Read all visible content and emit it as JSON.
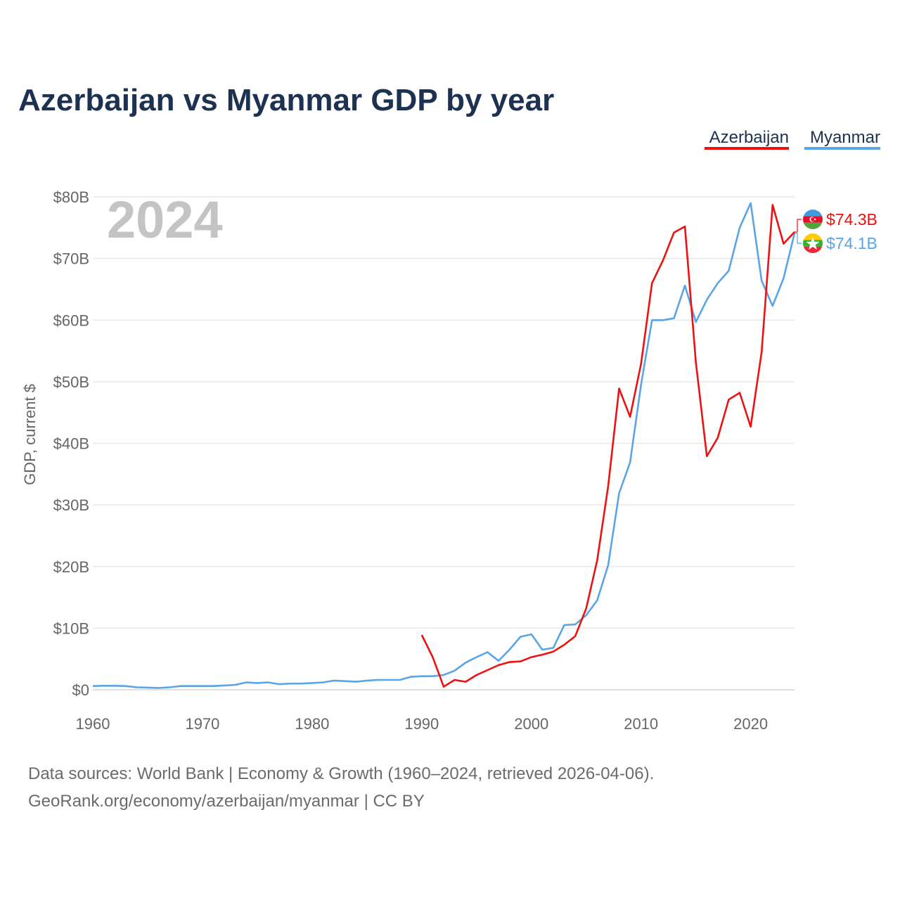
{
  "chart_data": {
    "type": "line",
    "title": "Azerbaijan vs Myanmar GDP by year",
    "ylabel": "GDP, current $",
    "xlabel": "",
    "year_watermark": "2024",
    "xlim": [
      1960,
      2024
    ],
    "ylim": [
      0,
      80
    ],
    "x_ticks": [
      {
        "value": 1960,
        "label": "1960"
      },
      {
        "value": 1970,
        "label": "1970"
      },
      {
        "value": 1980,
        "label": "1980"
      },
      {
        "value": 1990,
        "label": "1990"
      },
      {
        "value": 2000,
        "label": "2000"
      },
      {
        "value": 2010,
        "label": "2010"
      },
      {
        "value": 2020,
        "label": "2020"
      }
    ],
    "y_ticks": [
      {
        "value": 0,
        "label": "$0"
      },
      {
        "value": 10,
        "label": "$10B"
      },
      {
        "value": 20,
        "label": "$20B"
      },
      {
        "value": 30,
        "label": "$30B"
      },
      {
        "value": 40,
        "label": "$40B"
      },
      {
        "value": 50,
        "label": "$50B"
      },
      {
        "value": 60,
        "label": "$60B"
      },
      {
        "value": 70,
        "label": "$70B"
      },
      {
        "value": 80,
        "label": "$80B"
      }
    ],
    "units": "billions of current US$",
    "series": [
      {
        "name": "Azerbaijan",
        "color": "#ee1111",
        "flag_icon": "azerbaijan-flag-icon",
        "end_label": "$74.3B",
        "x": [
          1990,
          1991,
          1992,
          1993,
          1994,
          1995,
          1996,
          1997,
          1998,
          1999,
          2000,
          2001,
          2002,
          2003,
          2004,
          2005,
          2006,
          2007,
          2008,
          2009,
          2010,
          2011,
          2012,
          2013,
          2014,
          2015,
          2016,
          2017,
          2018,
          2019,
          2020,
          2021,
          2022,
          2023,
          2024
        ],
        "values": [
          8.9,
          5.3,
          0.5,
          1.6,
          1.3,
          2.4,
          3.2,
          4.0,
          4.5,
          4.6,
          5.3,
          5.7,
          6.2,
          7.3,
          8.7,
          13.2,
          21.0,
          33.0,
          48.9,
          44.3,
          52.9,
          66.0,
          69.7,
          74.2,
          75.2,
          53.1,
          37.9,
          40.9,
          47.1,
          48.2,
          42.7,
          54.8,
          78.7,
          72.4,
          74.3
        ]
      },
      {
        "name": "Myanmar",
        "color": "#5aa5e6",
        "flag_icon": "myanmar-flag-icon",
        "end_label": "$74.1B",
        "x": [
          1960,
          1961,
          1962,
          1963,
          1964,
          1965,
          1966,
          1967,
          1968,
          1969,
          1970,
          1971,
          1972,
          1973,
          1974,
          1975,
          1976,
          1977,
          1978,
          1979,
          1980,
          1981,
          1982,
          1983,
          1984,
          1985,
          1986,
          1987,
          1988,
          1989,
          1990,
          1991,
          1992,
          1993,
          1994,
          1995,
          1996,
          1997,
          1998,
          1999,
          2000,
          2001,
          2002,
          2003,
          2004,
          2005,
          2006,
          2007,
          2008,
          2009,
          2010,
          2011,
          2012,
          2013,
          2014,
          2015,
          2016,
          2017,
          2018,
          2019,
          2020,
          2021,
          2022,
          2023,
          2024
        ],
        "values": [
          0.6,
          0.65,
          0.65,
          0.6,
          0.4,
          0.35,
          0.3,
          0.4,
          0.6,
          0.6,
          0.6,
          0.6,
          0.7,
          0.8,
          1.2,
          1.1,
          1.2,
          0.9,
          1.0,
          1.0,
          1.1,
          1.2,
          1.5,
          1.4,
          1.3,
          1.5,
          1.6,
          1.6,
          1.6,
          2.1,
          2.2,
          2.2,
          2.4,
          3.1,
          4.4,
          5.3,
          6.1,
          4.7,
          6.5,
          8.6,
          9.0,
          6.5,
          6.8,
          10.5,
          10.6,
          12.1,
          14.5,
          20.2,
          31.9,
          36.9,
          49.5,
          60.0,
          60.0,
          60.3,
          65.6,
          59.7,
          63.3,
          66.0,
          68.0,
          75.0,
          79.0,
          66.4,
          62.3,
          66.8,
          74.1
        ]
      }
    ],
    "legend_position": "top-right",
    "grid": true
  },
  "footer": {
    "line1": "Data sources: World Bank | Economy & Growth (1960–2024, retrieved 2026-04-06).",
    "line2": "GeoRank.org/economy/azerbaijan/myanmar | CC BY"
  }
}
